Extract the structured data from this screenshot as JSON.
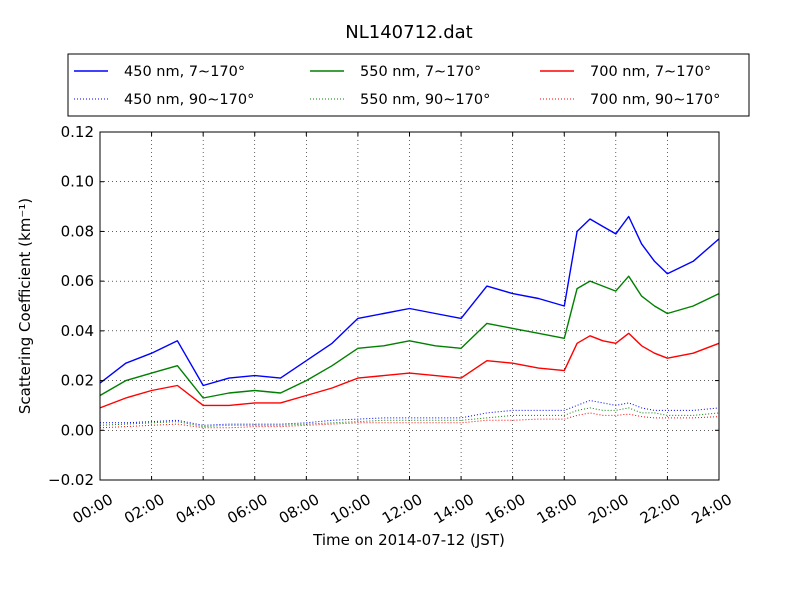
{
  "chart_data": {
    "type": "line",
    "title": "NL140712.dat",
    "xlabel": "Time on 2014-07-12 (JST)",
    "ylabel": "Scattering Coefficient (km⁻¹)",
    "xlim": [
      0,
      24
    ],
    "ylim": [
      -0.02,
      0.12
    ],
    "x_tick_labels": [
      "00:00",
      "02:00",
      "04:00",
      "06:00",
      "08:00",
      "10:00",
      "12:00",
      "14:00",
      "16:00",
      "18:00",
      "20:00",
      "22:00",
      "24:00"
    ],
    "y_tick_labels": [
      "−0.02",
      "0.00",
      "0.02",
      "0.04",
      "0.06",
      "0.08",
      "0.10",
      "0.12"
    ],
    "grid": true,
    "legend_position": "top",
    "x": [
      0,
      1,
      2,
      3,
      4,
      5,
      6,
      7,
      8,
      9,
      10,
      11,
      12,
      13,
      14,
      15,
      16,
      17,
      18,
      18.5,
      19,
      19.5,
      20,
      20.5,
      21,
      21.5,
      22,
      23,
      24
    ],
    "series": [
      {
        "name": "450 nm, 7∼170°",
        "color": "#0000ff",
        "style": "solid",
        "values": [
          0.019,
          0.027,
          0.031,
          0.036,
          0.018,
          0.021,
          0.022,
          0.021,
          0.028,
          0.035,
          0.045,
          0.047,
          0.049,
          0.047,
          0.045,
          0.058,
          0.055,
          0.053,
          0.05,
          0.08,
          0.085,
          0.082,
          0.079,
          0.086,
          0.075,
          0.068,
          0.063,
          0.068,
          0.077
        ]
      },
      {
        "name": "550 nm, 7∼170°",
        "color": "#008000",
        "style": "solid",
        "values": [
          0.014,
          0.02,
          0.023,
          0.026,
          0.013,
          0.015,
          0.016,
          0.015,
          0.02,
          0.026,
          0.033,
          0.034,
          0.036,
          0.034,
          0.033,
          0.043,
          0.041,
          0.039,
          0.037,
          0.057,
          0.06,
          0.058,
          0.056,
          0.062,
          0.054,
          0.05,
          0.047,
          0.05,
          0.055
        ]
      },
      {
        "name": "700 nm, 7∼170°",
        "color": "#ff0000",
        "style": "solid",
        "values": [
          0.009,
          0.013,
          0.016,
          0.018,
          0.01,
          0.01,
          0.011,
          0.011,
          0.014,
          0.017,
          0.021,
          0.022,
          0.023,
          0.022,
          0.021,
          0.028,
          0.027,
          0.025,
          0.024,
          0.035,
          0.038,
          0.036,
          0.035,
          0.039,
          0.034,
          0.031,
          0.029,
          0.031,
          0.035
        ]
      },
      {
        "name": "450 nm, 90∼170°",
        "color": "#0000ff",
        "style": "dotted",
        "values": [
          0.003,
          0.003,
          0.0035,
          0.004,
          0.002,
          0.0025,
          0.0025,
          0.0025,
          0.003,
          0.004,
          0.0045,
          0.005,
          0.005,
          0.005,
          0.005,
          0.007,
          0.008,
          0.008,
          0.008,
          0.01,
          0.012,
          0.011,
          0.01,
          0.011,
          0.009,
          0.008,
          0.008,
          0.008,
          0.009
        ]
      },
      {
        "name": "550 nm, 90∼170°",
        "color": "#008000",
        "style": "dotted",
        "values": [
          0.002,
          0.0025,
          0.003,
          0.0035,
          0.0015,
          0.002,
          0.002,
          0.002,
          0.0025,
          0.003,
          0.0035,
          0.004,
          0.004,
          0.004,
          0.004,
          0.005,
          0.006,
          0.006,
          0.006,
          0.008,
          0.009,
          0.008,
          0.008,
          0.009,
          0.007,
          0.007,
          0.006,
          0.006,
          0.007
        ]
      },
      {
        "name": "700 nm, 90∼170°",
        "color": "#ff0000",
        "style": "dotted",
        "values": [
          0.001,
          0.0015,
          0.002,
          0.0025,
          0.001,
          0.001,
          0.0015,
          0.0015,
          0.002,
          0.0025,
          0.003,
          0.003,
          0.003,
          0.003,
          0.003,
          0.004,
          0.004,
          0.0045,
          0.0045,
          0.006,
          0.007,
          0.006,
          0.006,
          0.0065,
          0.0055,
          0.005,
          0.005,
          0.005,
          0.0055
        ]
      }
    ]
  }
}
